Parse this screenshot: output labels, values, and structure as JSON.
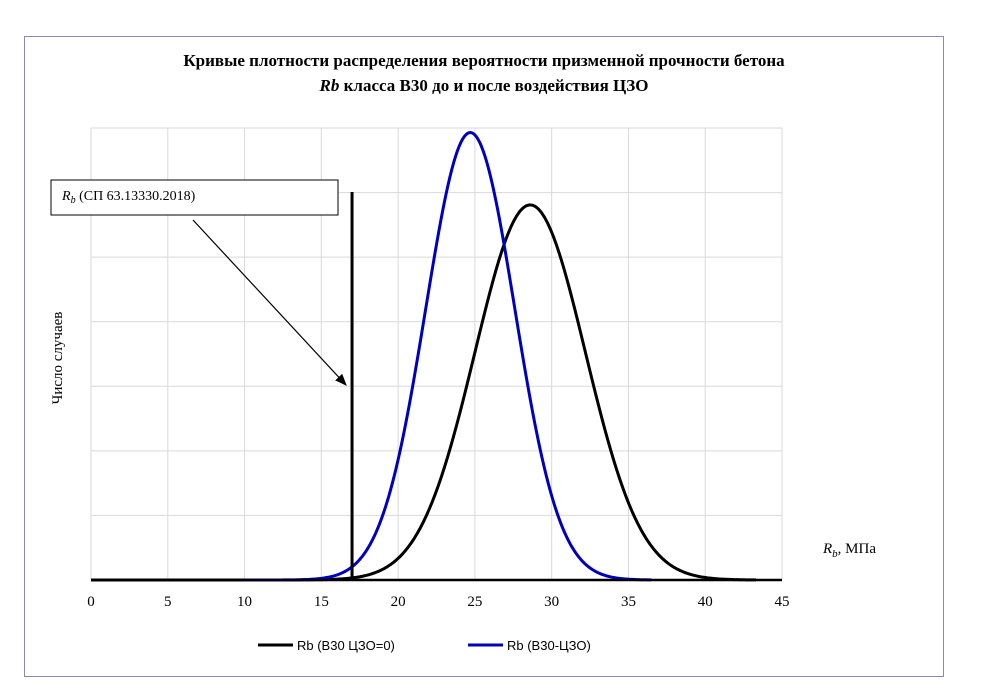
{
  "chart_data": {
    "type": "line",
    "title_line1": "Кривые плотности распределения вероятности призменной прочности бетона",
    "title_line2_italic": "Rb",
    "title_line2_rest": " класса В30 до и после воздействия ЦЗО",
    "ylabel": "Число случаев",
    "xlabel_var": "R",
    "xlabel_sub": "b",
    "xlabel_unit": ", МПа",
    "xlim": [
      0,
      45
    ],
    "x_ticks": [
      0,
      5,
      10,
      15,
      20,
      25,
      30,
      35,
      40,
      45
    ],
    "y_gridlines": 7,
    "grid": true,
    "legend_position": "bottom",
    "series": [
      {
        "name": "Rb (В30 ЦЗО=0)",
        "color": "#000000",
        "mean": 28.6,
        "std": 3.6,
        "peak": 0.83,
        "x_start": 0,
        "x_end": 43.3
      },
      {
        "name": "Rb (В30-ЦЗО)",
        "color": "#0000c0",
        "mean": 24.7,
        "std": 2.9,
        "peak": 0.99,
        "x_start": 10,
        "x_end": 36.5
      }
    ],
    "reference_line": {
      "x": 17,
      "color": "#000000",
      "label_var": "R",
      "label_sub": "b",
      "label_rest": " (СП 63.13330.2018)"
    }
  }
}
